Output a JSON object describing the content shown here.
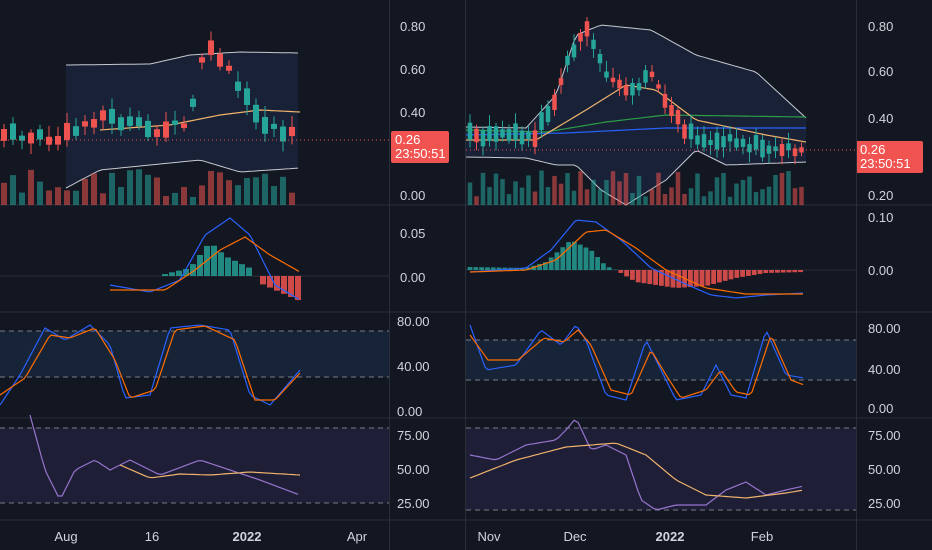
{
  "colors": {
    "background": "#131722",
    "grid": "#2a2e39",
    "up": "#26a69a",
    "down": "#ef5350",
    "bollinger": "#c7c9d1",
    "ma_orange": "#f0b36c",
    "ma_green": "#2e9c4a",
    "ma_blue": "#2962ff",
    "macd_line": "#2962ff",
    "signal_line": "#ff6d00",
    "stoch_k": "#2962ff",
    "stoch_d": "#ff6d00",
    "rsi_line": "#9575cd",
    "rsi_ma": "#f0b36c",
    "price_line": "#f05350"
  },
  "left_chart": {
    "price_axis": [
      "0.80",
      "0.60",
      "0.40",
      "0.00"
    ],
    "last_price": "0.26",
    "countdown": "23:50:51",
    "macd_axis": [
      "0.05",
      "0.00"
    ],
    "stoch_axis": [
      "80.00",
      "40.00",
      "0.00"
    ],
    "rsi_axis": [
      "75.00",
      "50.00",
      "25.00"
    ],
    "time_axis": [
      {
        "label": "Aug",
        "bold": false
      },
      {
        "label": "16",
        "bold": false
      },
      {
        "label": "2022",
        "bold": true
      },
      {
        "label": "Apr",
        "bold": false
      }
    ]
  },
  "right_chart": {
    "price_axis": [
      "0.80",
      "0.60",
      "0.40",
      "0.20"
    ],
    "last_price": "0.26",
    "countdown": "23:50:51",
    "macd_axis": [
      "0.10",
      "0.00"
    ],
    "stoch_axis": [
      "80.00",
      "40.00",
      "0.00"
    ],
    "rsi_axis": [
      "75.00",
      "50.00",
      "25.00"
    ],
    "time_axis": [
      {
        "label": "Nov",
        "bold": false
      },
      {
        "label": "Dec",
        "bold": false
      },
      {
        "label": "2022",
        "bold": true
      },
      {
        "label": "Feb",
        "bold": false
      }
    ]
  }
}
